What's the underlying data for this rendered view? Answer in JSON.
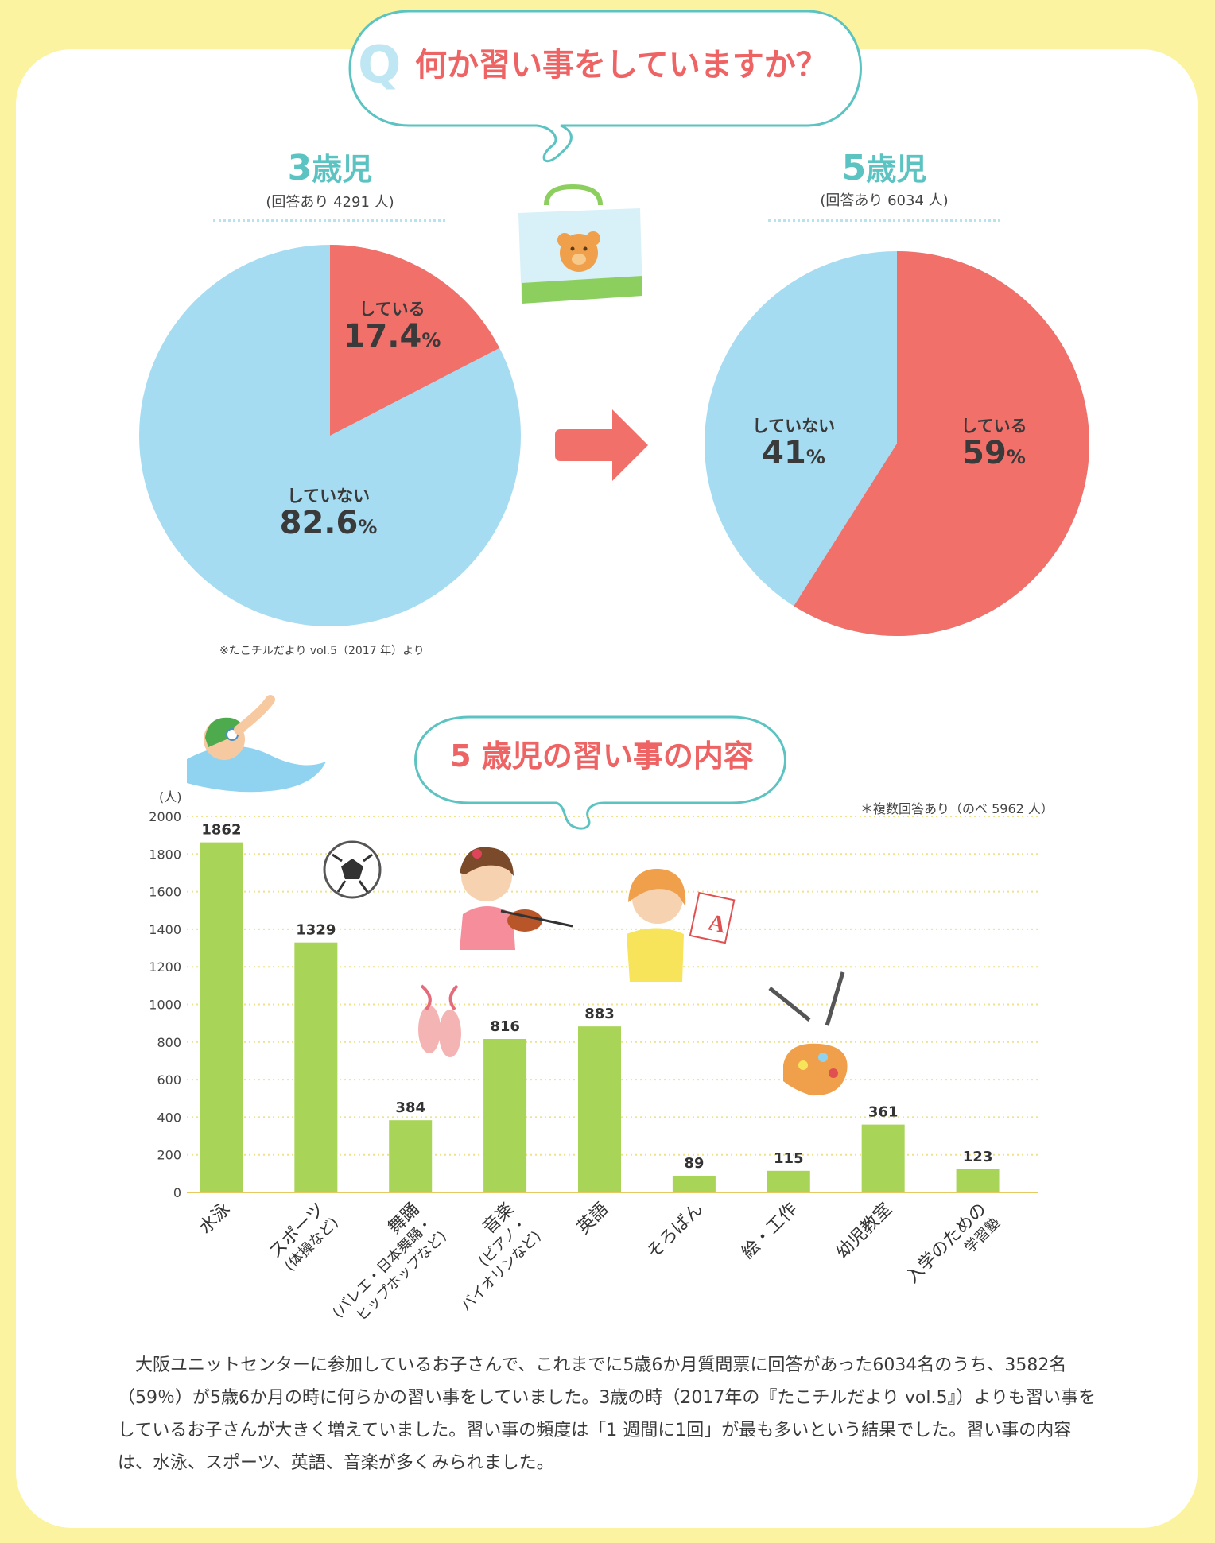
{
  "question": {
    "letter": "Q",
    "text": "何か習い事をしていますか？"
  },
  "pies": [
    {
      "age_num": "3",
      "age_unit": "歳児",
      "respondents": "(回答あり 4291 人)",
      "slices": [
        {
          "label": "している",
          "value": 17.4,
          "display": "17.4",
          "unit": "%"
        },
        {
          "label": "していない",
          "value": 82.6,
          "display": "82.6",
          "unit": "%"
        }
      ]
    },
    {
      "age_num": "5",
      "age_unit": "歳児",
      "respondents": "(回答あり 6034 人)",
      "slices": [
        {
          "label": "している",
          "value": 59,
          "display": "59",
          "unit": "%"
        },
        {
          "label": "していない",
          "value": 41,
          "display": "41",
          "unit": "%"
        }
      ]
    }
  ],
  "source": "※たこチルだより vol.5（2017 年）より",
  "colors": {
    "doing": "#f2706a",
    "not_doing": "#a6dcf1",
    "bar": "#a8d458",
    "accent": "#ee6363",
    "teal": "#5bc3c1"
  },
  "chart_data": {
    "type": "bar",
    "title": "5 歳児の習い事の内容",
    "ylabel": "(人)",
    "note": "＊複数回答あり（のべ 5962 人）",
    "ylim": [
      0,
      2000
    ],
    "yticks": [
      0,
      200,
      400,
      600,
      800,
      1000,
      1200,
      1400,
      1600,
      1800,
      2000
    ],
    "categories": [
      [
        "水泳"
      ],
      [
        "スポーツ",
        "(体操など)"
      ],
      [
        "舞踊",
        "(バレエ・日本舞踊・",
        "ヒップホップなど)"
      ],
      [
        "音楽",
        "(ピアノ・",
        "バイオリンなど)"
      ],
      [
        "英語"
      ],
      [
        "そろばん"
      ],
      [
        "絵・工作"
      ],
      [
        "幼児教室"
      ],
      [
        "入学のための",
        "学習塾"
      ]
    ],
    "values": [
      1862,
      1329,
      384,
      816,
      883,
      89,
      115,
      361,
      123
    ]
  },
  "body_text": "大阪ユニットセンターに参加しているお子さんで、これまでに5歳6か月質問票に回答があった6034名のうち、3582名（59％）が5歳6か月の時に何らかの習い事をしていました。3歳の時（2017年の『たこチルだより vol.5』）よりも習い事をしているお子さんが大きく増えていました。習い事の頻度は「1 週間に1回」が最も多いという結果でした。習い事の内容は、水泳、スポーツ、英語、音楽が多くみられました。",
  "icons": [
    "bag-icon",
    "arrow-right-icon",
    "swimmer-icon",
    "soccer-ball-icon",
    "violin-girl-icon",
    "english-girl-icon",
    "ballet-shoes-icon",
    "paint-palette-icon"
  ]
}
